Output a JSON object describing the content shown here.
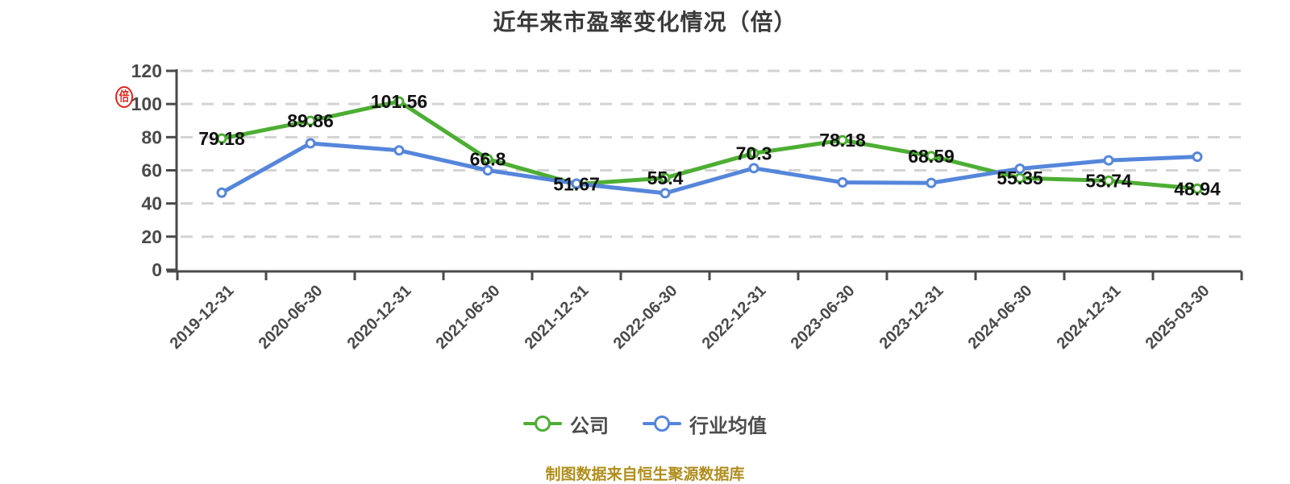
{
  "title": "近年来市盈率变化情况（倍）",
  "footer": "制图数据来自恒生聚源数据库",
  "axis_stamp": {
    "glyph": "倍",
    "color": "#e3241d"
  },
  "legend": {
    "items": [
      {
        "label": "公司",
        "color": "#4dae33"
      },
      {
        "label": "行业均值",
        "color": "#5586db"
      }
    ]
  },
  "colors": {
    "company_line": "#4dae33",
    "industry_line": "#5586db",
    "gridline": "#d3d3d3",
    "axis": "#4a4a4a",
    "data_label": "#111111",
    "tick_label": "#4a4a4a"
  },
  "chart_data": {
    "type": "line",
    "title": "近年来市盈率变化情况（倍）",
    "categories": [
      "2019-12-31",
      "2020-06-30",
      "2020-12-31",
      "2021-06-30",
      "2021-12-31",
      "2022-06-30",
      "2022-12-31",
      "2023-06-30",
      "2023-12-31",
      "2024-06-30",
      "2024-12-31",
      "2025-03-30"
    ],
    "series": [
      {
        "name": "公司",
        "color": "#4dae33",
        "values": [
          79.18,
          89.86,
          101.56,
          66.8,
          51.67,
          55.4,
          70.3,
          78.18,
          68.59,
          55.35,
          53.74,
          48.94
        ],
        "labels": [
          "79.18",
          "89.86",
          "101.56",
          "66.8",
          "51.67",
          "55.4",
          "70.3",
          "78.18",
          "68.59",
          "55.35",
          "53.74",
          "48.94"
        ],
        "labels_visible": true
      },
      {
        "name": "行业均值",
        "color": "#5586db",
        "values": [
          46.5,
          76.3,
          72,
          60,
          52,
          46.2,
          61.3,
          52.7,
          52.4,
          61,
          66,
          68.2
        ],
        "labels": [],
        "labels_visible": false
      }
    ],
    "ylabel": "",
    "xlabel": "",
    "ylim": [
      0,
      120
    ],
    "ytick_step": 20,
    "yticks": [
      0,
      20,
      40,
      60,
      80,
      100,
      120
    ],
    "grid": "horizontal-dashed",
    "legend_position": "bottom",
    "x_label_rotation": 45,
    "marker": "circle-white-fill"
  }
}
